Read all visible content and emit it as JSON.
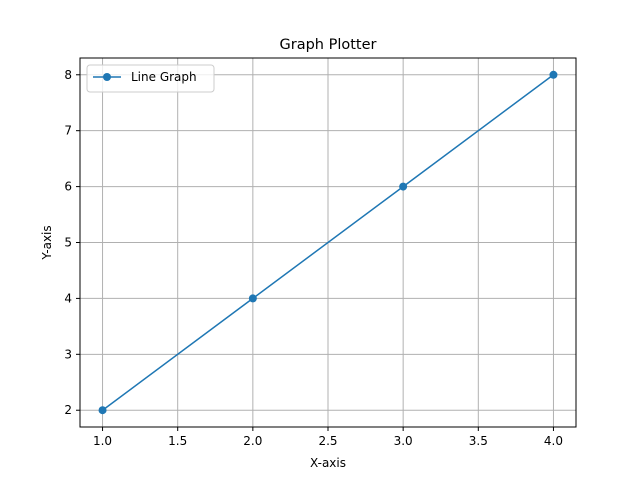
{
  "chart_data": {
    "type": "line",
    "title": "Graph Plotter",
    "xlabel": "X-axis",
    "ylabel": "Y-axis",
    "xlim": [
      0.85,
      4.15
    ],
    "ylim": [
      1.7,
      8.3
    ],
    "xticks": [
      1.0,
      1.5,
      2.0,
      2.5,
      3.0,
      3.5,
      4.0
    ],
    "xtick_labels": [
      "1.0",
      "1.5",
      "2.0",
      "2.5",
      "3.0",
      "3.5",
      "4.0"
    ],
    "yticks": [
      2,
      3,
      4,
      5,
      6,
      7,
      8
    ],
    "ytick_labels": [
      "2",
      "3",
      "4",
      "5",
      "6",
      "7",
      "8"
    ],
    "grid": true,
    "legend_position": "upper-left",
    "series": [
      {
        "name": "Line Graph",
        "color": "#1f77b4",
        "marker": "circle",
        "x": [
          1,
          2,
          3,
          4
        ],
        "y": [
          2,
          4,
          6,
          8
        ]
      }
    ]
  }
}
